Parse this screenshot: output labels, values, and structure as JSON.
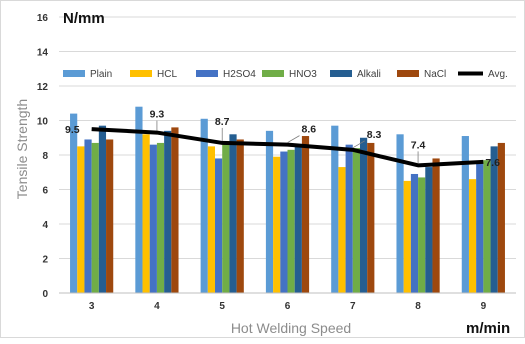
{
  "chart_data": {
    "type": "bar",
    "categories": [
      "3",
      "4",
      "5",
      "6",
      "7",
      "8",
      "9"
    ],
    "series": [
      {
        "name": "Plain",
        "color": "#5b9bd5",
        "values": [
          10.4,
          10.8,
          10.1,
          9.4,
          9.7,
          9.2,
          9.1
        ]
      },
      {
        "name": "HCL",
        "color": "#ffc000",
        "values": [
          8.5,
          9.2,
          8.5,
          7.9,
          7.3,
          6.5,
          6.6
        ]
      },
      {
        "name": "H2SO4",
        "color": "#4472c4",
        "values": [
          8.9,
          8.6,
          7.8,
          8.2,
          8.6,
          6.9,
          7.5
        ]
      },
      {
        "name": "HNO3",
        "color": "#70ad47",
        "values": [
          8.7,
          8.7,
          8.8,
          8.3,
          8.4,
          6.7,
          7.7
        ]
      },
      {
        "name": "Alkali",
        "color": "#255e91",
        "values": [
          9.7,
          9.4,
          9.2,
          8.5,
          9.0,
          7.3,
          8.5
        ]
      },
      {
        "name": "NaCl",
        "color": "#9e480e",
        "values": [
          8.9,
          9.6,
          8.9,
          9.1,
          8.7,
          7.8,
          8.7
        ]
      }
    ],
    "line": {
      "name": "Avg.",
      "color": "#000000",
      "values": [
        9.5,
        9.3,
        8.7,
        8.6,
        8.3,
        7.4,
        7.6
      ]
    },
    "data_labels": [
      "9.5",
      "9.3",
      "8.7",
      "8.6",
      "8.3",
      "7.4",
      "7.6"
    ],
    "ylabel": "Tensile Strength",
    "y_unit": "N/mm",
    "xlabel": "Hot Welding Speed",
    "x_unit": "m/min",
    "ylim": [
      0,
      16
    ],
    "yticks": [
      "0",
      "2",
      "4",
      "6",
      "8",
      "10",
      "12",
      "14",
      "16"
    ],
    "grid": "horizontal",
    "legend_position": "top"
  }
}
